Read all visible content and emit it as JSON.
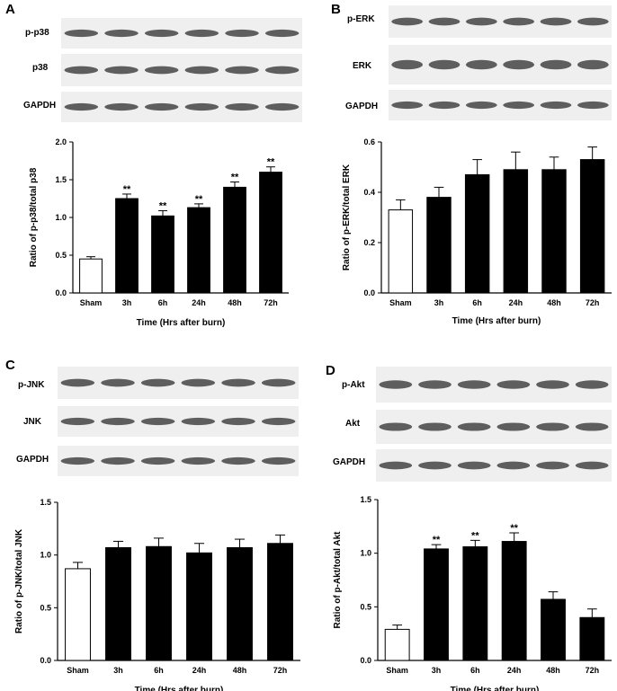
{
  "panels": [
    {
      "letter": "A",
      "blot_labels": [
        "p-p38",
        "p38",
        "GAPDH"
      ],
      "chart_data": {
        "type": "bar",
        "categories": [
          "Sham",
          "3h",
          "6h",
          "24h",
          "48h",
          "72h"
        ],
        "values": [
          0.45,
          1.25,
          1.02,
          1.13,
          1.4,
          1.6
        ],
        "errors": [
          0.03,
          0.06,
          0.07,
          0.05,
          0.07,
          0.07
        ],
        "significance": [
          "",
          "**",
          "**",
          "**",
          "**",
          "**"
        ],
        "bar_colors": [
          "#ffffff",
          "#000000",
          "#000000",
          "#000000",
          "#000000",
          "#000000"
        ],
        "ylabel": "Ratio of p-p38/total p38",
        "xlabel": "Time (Hrs after burn)",
        "ylim": [
          0,
          2.0
        ],
        "yticks": [
          "0.0",
          "0.5",
          "1.0",
          "1.5",
          "2.0"
        ],
        "ytick_values": [
          0,
          0.5,
          1.0,
          1.5,
          2.0
        ]
      }
    },
    {
      "letter": "B",
      "blot_labels": [
        "p-ERK",
        "ERK",
        "GAPDH"
      ],
      "chart_data": {
        "type": "bar",
        "categories": [
          "Sham",
          "3h",
          "6h",
          "24h",
          "48h",
          "72h"
        ],
        "values": [
          0.33,
          0.38,
          0.47,
          0.49,
          0.49,
          0.53
        ],
        "errors": [
          0.04,
          0.04,
          0.06,
          0.07,
          0.05,
          0.05
        ],
        "significance": [
          "",
          "",
          "",
          "",
          "",
          ""
        ],
        "bar_colors": [
          "#ffffff",
          "#000000",
          "#000000",
          "#000000",
          "#000000",
          "#000000"
        ],
        "ylabel": "Ratio of p-ERK/total ERK",
        "xlabel": "Time (Hrs after burn)",
        "ylim": [
          0,
          0.6
        ],
        "yticks": [
          "0.0",
          "0.2",
          "0.4",
          "0.6"
        ],
        "ytick_values": [
          0,
          0.2,
          0.4,
          0.6
        ]
      }
    },
    {
      "letter": "C",
      "blot_labels": [
        "p-JNK",
        "JNK",
        "GAPDH"
      ],
      "chart_data": {
        "type": "bar",
        "categories": [
          "Sham",
          "3h",
          "6h",
          "24h",
          "48h",
          "72h"
        ],
        "values": [
          0.87,
          1.07,
          1.08,
          1.02,
          1.07,
          1.11
        ],
        "errors": [
          0.06,
          0.06,
          0.08,
          0.09,
          0.08,
          0.08
        ],
        "significance": [
          "",
          "",
          "",
          "",
          "",
          ""
        ],
        "bar_colors": [
          "#ffffff",
          "#000000",
          "#000000",
          "#000000",
          "#000000",
          "#000000"
        ],
        "ylabel": "Ratio of p-JNK/total JNK",
        "xlabel": "Time (Hrs after burn)",
        "ylim": [
          0,
          1.5
        ],
        "yticks": [
          "0.0",
          "0.5",
          "1.0",
          "1.5"
        ],
        "ytick_values": [
          0,
          0.5,
          1.0,
          1.5
        ]
      }
    },
    {
      "letter": "D",
      "blot_labels": [
        "p-Akt",
        "Akt",
        "GAPDH"
      ],
      "chart_data": {
        "type": "bar",
        "categories": [
          "Sham",
          "3h",
          "6h",
          "24h",
          "48h",
          "72h"
        ],
        "values": [
          0.29,
          1.04,
          1.06,
          1.11,
          0.57,
          0.4
        ],
        "errors": [
          0.04,
          0.04,
          0.06,
          0.08,
          0.07,
          0.08
        ],
        "significance": [
          "",
          "**",
          "**",
          "**",
          "",
          ""
        ],
        "bar_colors": [
          "#ffffff",
          "#000000",
          "#000000",
          "#000000",
          "#000000",
          "#000000"
        ],
        "ylabel": "Ratio of p-Akt/total Akt",
        "xlabel": "Time (Hrs after burn)",
        "ylim": [
          0,
          1.5
        ],
        "yticks": [
          "0.0",
          "0.5",
          "1.0",
          "1.5"
        ],
        "ytick_values": [
          0,
          0.5,
          1.0,
          1.5
        ]
      }
    }
  ]
}
